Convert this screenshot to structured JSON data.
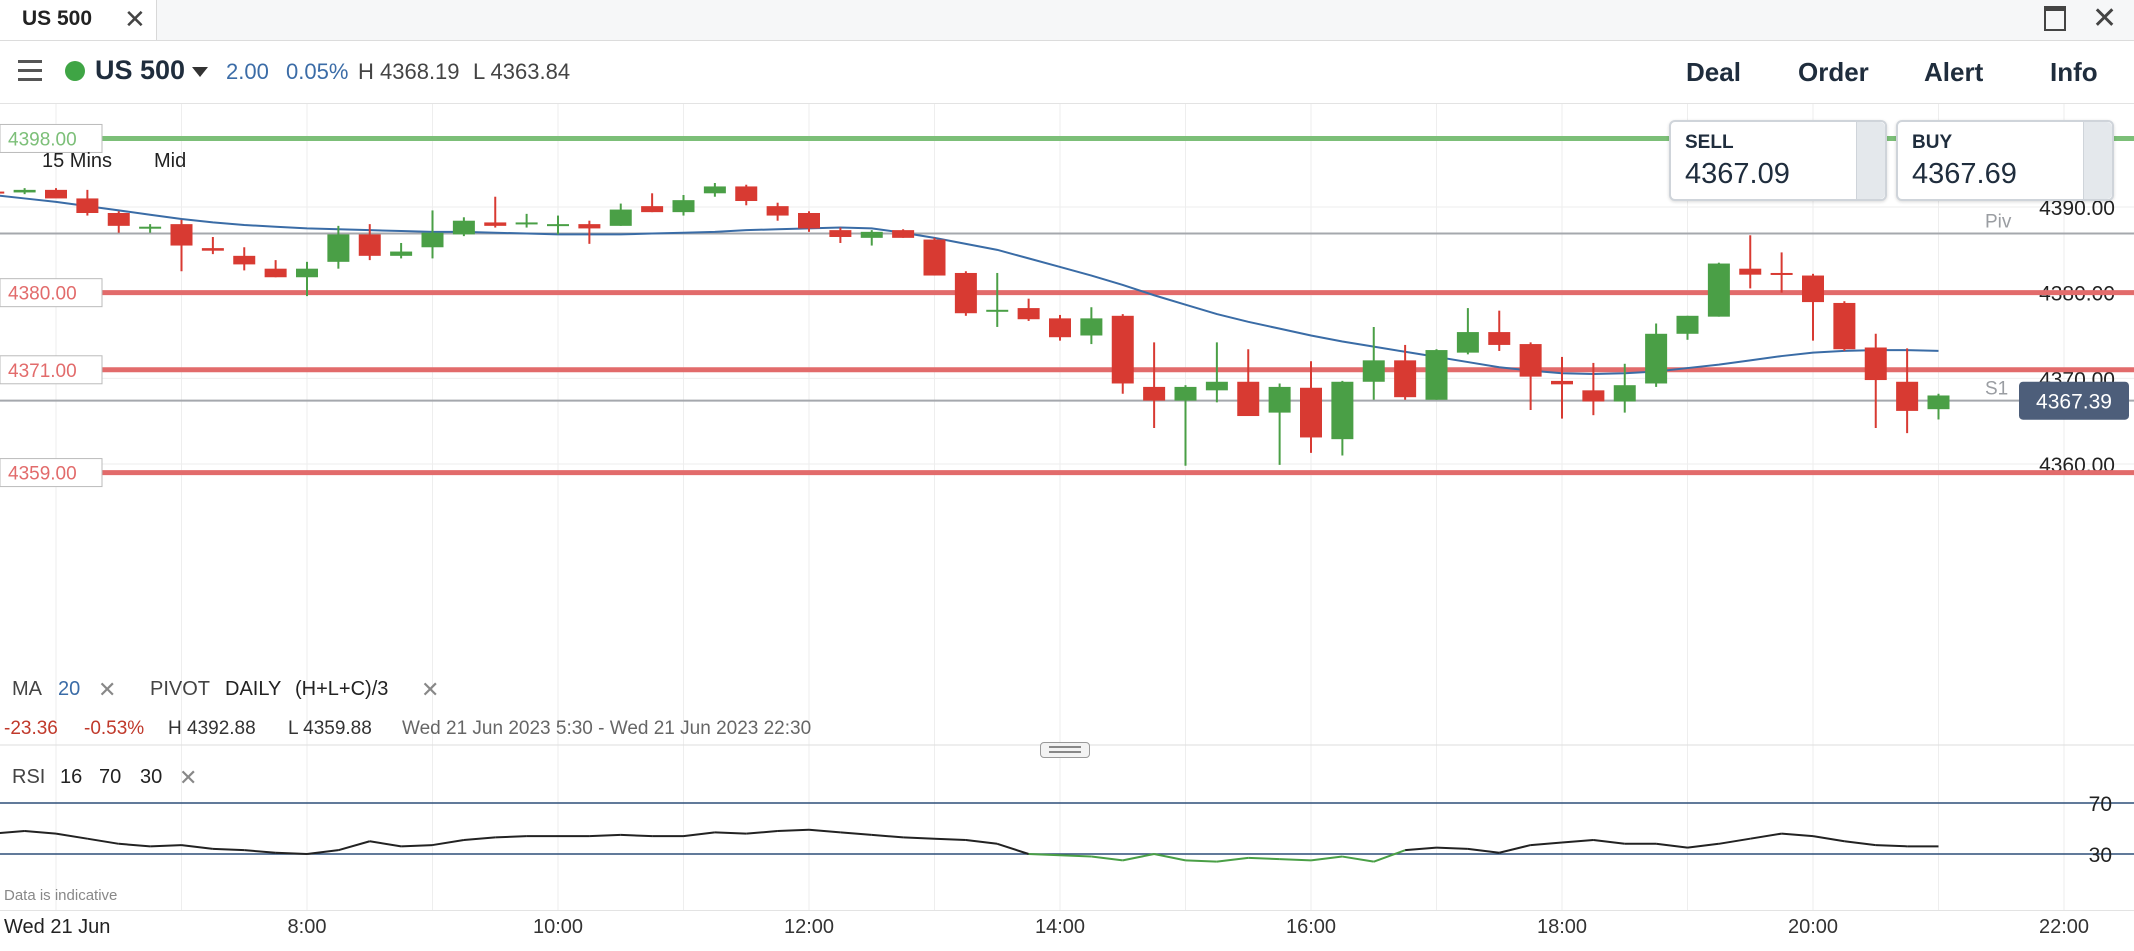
{
  "tab": {
    "title": "US 500"
  },
  "instrument": {
    "name": "US 500",
    "change_abs": "2.00",
    "change_pct": "0.05%",
    "high": "H 4368.19",
    "low": "L 4363.84",
    "status_color": "#3fa545"
  },
  "nav": {
    "deal": "Deal",
    "order": "Order",
    "alert": "Alert",
    "info": "Info"
  },
  "chart_settings": {
    "timeframe": "15 Mins",
    "price_type": "Mid"
  },
  "quotes": {
    "sell_label": "SELL",
    "sell_value": "4367.09",
    "buy_label": "BUY",
    "buy_value": "4367.69"
  },
  "indicators": {
    "ma": {
      "label": "MA",
      "period": "20"
    },
    "pivot": {
      "label": "PIVOT",
      "mode": "DAILY",
      "formula": "(H+L+C)/3"
    },
    "rsi": {
      "label": "RSI",
      "period": "16",
      "upper": "70",
      "lower": "30"
    }
  },
  "stats": {
    "change_abs": "-23.36",
    "change_pct": "-0.53%",
    "high": "H 4392.88",
    "low": "L 4359.88",
    "range": "Wed 21 Jun 2023 5:30 - Wed 21 Jun 2023 22:30"
  },
  "footer": {
    "data_note": "Data is indicative",
    "date_label": "Wed 21 Jun"
  },
  "colors": {
    "up": "#4a9f46",
    "down": "#d83a32",
    "ma_line": "#3a6ca6",
    "alert_line": "#e26b6b",
    "target_line": "#7cbf78",
    "current_price_bg": "#4d5e7a"
  },
  "chart_data": {
    "type": "candlestick",
    "x_axis": {
      "ticks": [
        "8:00",
        "10:00",
        "12:00",
        "14:00",
        "16:00",
        "18:00",
        "20:00",
        "22:00"
      ],
      "range": [
        "6:00",
        "22:30"
      ]
    },
    "y_axis": {
      "ticks": [
        "4390.00",
        "4380.00",
        "4370.00",
        "4360.00"
      ],
      "range": [
        4359,
        4398
      ]
    },
    "levels": [
      {
        "label": "4398.00",
        "value": 4398,
        "kind": "target"
      },
      {
        "label": "4380.00",
        "value": 4380,
        "kind": "alert"
      },
      {
        "label": "4371.00",
        "value": 4371,
        "kind": "alert"
      },
      {
        "label": "4359.00",
        "value": 4359,
        "kind": "alert"
      }
    ],
    "pivot_lines": [
      {
        "label": "Piv",
        "value": 4386.9
      },
      {
        "label": "S1",
        "value": 4367.4
      }
    ],
    "current_price": {
      "label": "4367.39",
      "value": 4367.39
    },
    "candles": [
      {
        "t": "5:30",
        "o": 4391.8,
        "h": 4392.2,
        "l": 4391.4,
        "c": 4391.6
      },
      {
        "t": "5:45",
        "o": 4391.7,
        "h": 4392.2,
        "l": 4391.5,
        "c": 4392.0
      },
      {
        "t": "6:00",
        "o": 4392.0,
        "h": 4392.2,
        "l": 4391.2,
        "c": 4391.0
      },
      {
        "t": "6:15",
        "o": 4391.0,
        "h": 4392.0,
        "l": 4389.0,
        "c": 4389.3
      },
      {
        "t": "6:30",
        "o": 4389.3,
        "h": 4389.5,
        "l": 4387.0,
        "c": 4387.8
      },
      {
        "t": "6:45",
        "o": 4387.5,
        "h": 4388.0,
        "l": 4387.0,
        "c": 4387.7
      },
      {
        "t": "7:00",
        "o": 4388.0,
        "h": 4388.5,
        "l": 4382.5,
        "c": 4385.5
      },
      {
        "t": "7:15",
        "o": 4385.2,
        "h": 4386.5,
        "l": 4384.5,
        "c": 4384.9
      },
      {
        "t": "7:30",
        "o": 4384.3,
        "h": 4385.3,
        "l": 4382.6,
        "c": 4383.3
      },
      {
        "t": "7:45",
        "o": 4382.8,
        "h": 4383.8,
        "l": 4381.8,
        "c": 4381.8
      },
      {
        "t": "8:00",
        "o": 4381.8,
        "h": 4383.6,
        "l": 4379.6,
        "c": 4382.8
      },
      {
        "t": "8:15",
        "o": 4383.6,
        "h": 4387.8,
        "l": 4382.8,
        "c": 4386.8
      },
      {
        "t": "8:30",
        "o": 4386.8,
        "h": 4388.0,
        "l": 4383.8,
        "c": 4384.3
      },
      {
        "t": "8:45",
        "o": 4384.3,
        "h": 4385.8,
        "l": 4384.0,
        "c": 4384.8
      },
      {
        "t": "9:00",
        "o": 4385.3,
        "h": 4389.6,
        "l": 4384.0,
        "c": 4387.0
      },
      {
        "t": "9:15",
        "o": 4386.8,
        "h": 4388.8,
        "l": 4386.6,
        "c": 4388.4
      },
      {
        "t": "9:30",
        "o": 4388.2,
        "h": 4391.2,
        "l": 4387.6,
        "c": 4387.8
      },
      {
        "t": "9:45",
        "o": 4388.0,
        "h": 4389.2,
        "l": 4387.6,
        "c": 4388.2
      },
      {
        "t": "10:00",
        "o": 4388.0,
        "h": 4389.0,
        "l": 4386.8,
        "c": 4388.0
      },
      {
        "t": "10:15",
        "o": 4388.0,
        "h": 4388.4,
        "l": 4385.7,
        "c": 4387.5
      },
      {
        "t": "10:30",
        "o": 4387.8,
        "h": 4390.4,
        "l": 4387.8,
        "c": 4389.7
      },
      {
        "t": "10:45",
        "o": 4390.1,
        "h": 4391.6,
        "l": 4389.4,
        "c": 4389.4
      },
      {
        "t": "11:00",
        "o": 4389.4,
        "h": 4391.4,
        "l": 4389.0,
        "c": 4390.8
      },
      {
        "t": "11:15",
        "o": 4391.6,
        "h": 4392.8,
        "l": 4391.2,
        "c": 4392.4
      },
      {
        "t": "11:30",
        "o": 4392.4,
        "h": 4392.6,
        "l": 4390.2,
        "c": 4390.7
      },
      {
        "t": "11:45",
        "o": 4390.1,
        "h": 4390.5,
        "l": 4388.4,
        "c": 4389.0
      },
      {
        "t": "12:00",
        "o": 4389.3,
        "h": 4389.5,
        "l": 4387.1,
        "c": 4387.5
      },
      {
        "t": "12:15",
        "o": 4387.3,
        "h": 4387.6,
        "l": 4385.8,
        "c": 4386.5
      },
      {
        "t": "12:30",
        "o": 4386.4,
        "h": 4387.3,
        "l": 4385.5,
        "c": 4387.1
      },
      {
        "t": "12:45",
        "o": 4387.3,
        "h": 4387.4,
        "l": 4386.4,
        "c": 4386.4
      },
      {
        "t": "13:00",
        "o": 4386.2,
        "h": 4386.4,
        "l": 4382.0,
        "c": 4382.0
      },
      {
        "t": "13:15",
        "o": 4382.3,
        "h": 4382.5,
        "l": 4377.3,
        "c": 4377.6
      },
      {
        "t": "13:30",
        "o": 4378.0,
        "h": 4382.3,
        "l": 4376.0,
        "c": 4378.0
      },
      {
        "t": "13:45",
        "o": 4378.2,
        "h": 4379.3,
        "l": 4376.7,
        "c": 4376.9
      },
      {
        "t": "14:00",
        "o": 4377.0,
        "h": 4377.4,
        "l": 4374.4,
        "c": 4374.8
      },
      {
        "t": "14:15",
        "o": 4375.0,
        "h": 4378.3,
        "l": 4374.0,
        "c": 4377.0
      },
      {
        "t": "14:30",
        "o": 4377.3,
        "h": 4377.5,
        "l": 4368.2,
        "c": 4369.4
      },
      {
        "t": "14:45",
        "o": 4369.0,
        "h": 4374.2,
        "l": 4364.2,
        "c": 4367.4
      },
      {
        "t": "15:00",
        "o": 4367.4,
        "h": 4369.2,
        "l": 4359.8,
        "c": 4369.0
      },
      {
        "t": "15:15",
        "o": 4368.6,
        "h": 4374.2,
        "l": 4367.2,
        "c": 4369.6
      },
      {
        "t": "15:30",
        "o": 4369.6,
        "h": 4373.4,
        "l": 4365.6,
        "c": 4365.6
      },
      {
        "t": "15:45",
        "o": 4366.0,
        "h": 4369.4,
        "l": 4359.9,
        "c": 4369.0
      },
      {
        "t": "16:00",
        "o": 4368.9,
        "h": 4372.0,
        "l": 4361.3,
        "c": 4363.1
      },
      {
        "t": "16:15",
        "o": 4362.9,
        "h": 4369.7,
        "l": 4361.0,
        "c": 4369.6
      },
      {
        "t": "16:30",
        "o": 4369.6,
        "h": 4376.0,
        "l": 4367.5,
        "c": 4372.1
      },
      {
        "t": "16:45",
        "o": 4372.1,
        "h": 4373.9,
        "l": 4367.5,
        "c": 4367.8
      },
      {
        "t": "17:00",
        "o": 4367.5,
        "h": 4373.4,
        "l": 4367.5,
        "c": 4373.3
      },
      {
        "t": "17:15",
        "o": 4373.0,
        "h": 4378.2,
        "l": 4372.8,
        "c": 4375.4
      },
      {
        "t": "17:30",
        "o": 4375.4,
        "h": 4377.9,
        "l": 4373.2,
        "c": 4373.9
      },
      {
        "t": "17:45",
        "o": 4374.0,
        "h": 4374.2,
        "l": 4366.3,
        "c": 4370.2
      },
      {
        "t": "18:00",
        "o": 4369.7,
        "h": 4372.5,
        "l": 4365.3,
        "c": 4369.3
      },
      {
        "t": "18:15",
        "o": 4368.6,
        "h": 4371.8,
        "l": 4365.7,
        "c": 4367.3
      },
      {
        "t": "18:30",
        "o": 4367.3,
        "h": 4371.7,
        "l": 4366.0,
        "c": 4369.2
      },
      {
        "t": "18:45",
        "o": 4369.4,
        "h": 4376.4,
        "l": 4369.0,
        "c": 4375.2
      },
      {
        "t": "19:00",
        "o": 4375.2,
        "h": 4377.3,
        "l": 4374.5,
        "c": 4377.3
      },
      {
        "t": "19:15",
        "o": 4377.2,
        "h": 4383.5,
        "l": 4377.2,
        "c": 4383.4
      },
      {
        "t": "19:30",
        "o": 4382.8,
        "h": 4386.7,
        "l": 4380.5,
        "c": 4382.1
      },
      {
        "t": "19:45",
        "o": 4382.3,
        "h": 4384.7,
        "l": 4380.0,
        "c": 4382.2
      },
      {
        "t": "20:00",
        "o": 4382.0,
        "h": 4382.2,
        "l": 4374.4,
        "c": 4378.9
      },
      {
        "t": "20:15",
        "o": 4378.8,
        "h": 4379.0,
        "l": 4373.2,
        "c": 4373.4
      },
      {
        "t": "20:30",
        "o": 4373.6,
        "h": 4375.2,
        "l": 4364.2,
        "c": 4369.8
      },
      {
        "t": "20:45",
        "o": 4369.6,
        "h": 4373.5,
        "l": 4363.6,
        "c": 4366.2
      },
      {
        "t": "21:00",
        "o": 4366.4,
        "h": 4368.2,
        "l": 4365.2,
        "c": 4368.0
      }
    ],
    "ma_series": {
      "name": "MA 20",
      "values": [
        4391.4,
        4391.0,
        4390.6,
        4390.1,
        4389.6,
        4389.1,
        4388.6,
        4388.2,
        4387.9,
        4387.7,
        4387.5,
        4387.4,
        4387.3,
        4387.2,
        4387.1,
        4387.1,
        4387.0,
        4386.9,
        4386.8,
        4386.8,
        4386.8,
        4386.9,
        4387.0,
        4387.1,
        4387.3,
        4387.4,
        4387.5,
        4387.6,
        4387.5,
        4387.0,
        4386.4,
        4385.7,
        4385.0,
        4384.0,
        4383.0,
        4382.0,
        4380.9,
        4379.7,
        4378.6,
        4377.5,
        4376.6,
        4375.8,
        4375.0,
        4374.3,
        4373.7,
        4373.1,
        4372.5,
        4371.9,
        4371.3,
        4370.9,
        4370.6,
        4370.5,
        4370.6,
        4370.8,
        4371.2,
        4371.6,
        4372.1,
        4372.6,
        4373.0,
        4373.2,
        4373.3,
        4373.3,
        4373.2
      ]
    },
    "rsi": {
      "period": 16,
      "upper": 70,
      "lower": 30,
      "values": [
        46,
        48,
        46,
        42,
        38,
        36,
        37,
        34,
        33,
        31,
        30,
        33,
        40,
        36,
        37,
        41,
        43,
        44,
        44,
        44,
        45,
        44,
        44,
        47,
        46,
        48,
        49,
        47,
        45,
        43,
        42,
        41,
        38,
        30,
        29,
        28,
        25,
        30,
        25,
        24,
        27,
        26,
        25,
        28,
        24,
        33,
        35,
        34,
        31,
        37,
        39,
        41,
        38,
        38,
        35,
        38,
        42,
        46,
        44,
        40,
        37,
        36,
        36
      ]
    }
  }
}
